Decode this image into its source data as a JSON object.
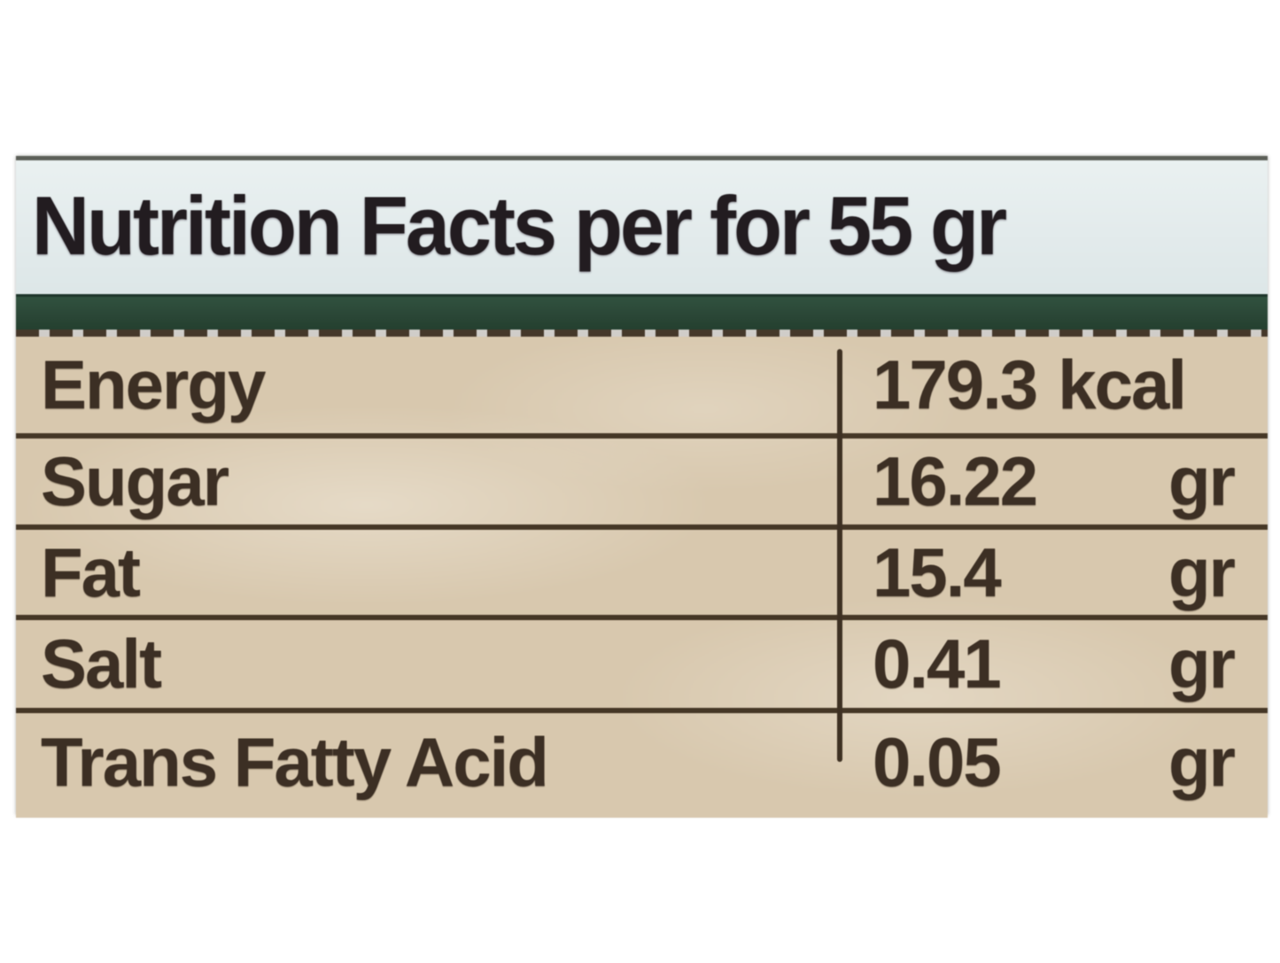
{
  "header": {
    "title": "Nutrition Facts per for 55 gr"
  },
  "table": {
    "rows": [
      {
        "name": "Energy",
        "value": "179.3",
        "unit": "kcal"
      },
      {
        "name": "Sugar",
        "value": "16.22",
        "unit": "gr"
      },
      {
        "name": "Fat",
        "value": "15.4",
        "unit": "gr"
      },
      {
        "name": "Salt",
        "value": "0.41",
        "unit": "gr"
      },
      {
        "name": "Trans Fatty Acid",
        "value": "0.05",
        "unit": "gr"
      }
    ]
  },
  "colors": {
    "header_bg": "#e4ecec",
    "green_bar": "#2a4636",
    "body_bg": "#d8c8ae",
    "rule_line": "#453726",
    "text": "#3c2f24",
    "title_text": "#221c20"
  }
}
